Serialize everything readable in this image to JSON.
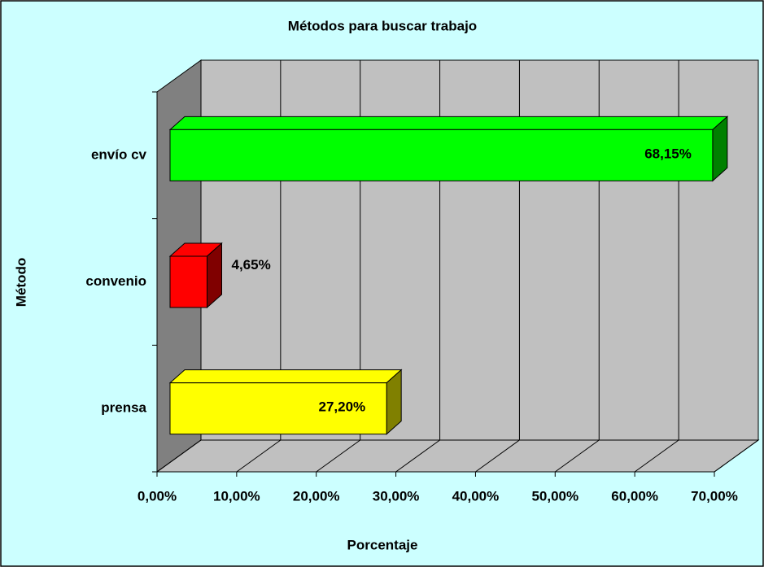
{
  "chart_data": {
    "type": "bar3d",
    "orientation": "horizontal",
    "title": "Métodos para buscar trabajo",
    "x_label": "Porcentaje",
    "y_label": "Método",
    "categories": [
      "envío cv",
      "convenio",
      "prensa"
    ],
    "values": [
      68.15,
      4.65,
      27.2
    ],
    "value_labels": [
      "68,15%",
      "4,65%",
      "27,20%"
    ],
    "colors": [
      "#00ff00",
      "#ff0000",
      "#ffff00"
    ],
    "xlim": [
      0,
      70
    ],
    "xticks": [
      {
        "value": 0,
        "label": "0,00%"
      },
      {
        "value": 10,
        "label": "10,00%"
      },
      {
        "value": 20,
        "label": "20,00%"
      },
      {
        "value": 30,
        "label": "30,00%"
      },
      {
        "value": 40,
        "label": "40,00%"
      },
      {
        "value": 50,
        "label": "50,00%"
      },
      {
        "value": 60,
        "label": "60,00%"
      },
      {
        "value": 70,
        "label": "70,00%"
      }
    ],
    "grid": true
  }
}
